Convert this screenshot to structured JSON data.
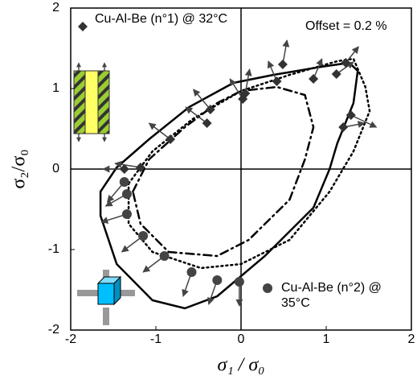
{
  "chart_data": {
    "type": "scatter",
    "x_label": "σ₁ / σ₀",
    "y_label": "σ₂/σ₀",
    "annotation": "Offset = 0.2 %",
    "xlim": [
      -2,
      2
    ],
    "ylim": [
      -2,
      2
    ],
    "xticks": [
      -2,
      -1,
      0,
      1,
      2
    ],
    "yticks": [
      -2,
      -1,
      0,
      1,
      2
    ],
    "series": [
      {
        "name": "Cu-Al-Be (n°1) @ 32°C",
        "marker": "diamond",
        "color": "#333333",
        "x": [
          0.49,
          1.23,
          1.12,
          0.85,
          0.42,
          0.05,
          0.02,
          -0.36,
          -0.4,
          -0.83,
          -1.18,
          -1.37,
          1.2,
          1.29
        ],
        "y": [
          1.3,
          1.32,
          1.18,
          1.12,
          1.09,
          0.94,
          0.87,
          0.74,
          0.57,
          0.37,
          0.02,
          0.0,
          0.52,
          0.67
        ],
        "dx": [
          0.05,
          0.15,
          0.2,
          0.1,
          -0.1,
          0.05,
          -0.15,
          -0.2,
          -0.25,
          -0.25,
          -0.3,
          -0.25,
          0.25,
          0.3
        ],
        "dy": [
          0.3,
          0.2,
          0.15,
          0.25,
          0.25,
          0.3,
          0.25,
          0.25,
          0.2,
          0.2,
          0.05,
          0,
          0.05,
          -0.15
        ]
      },
      {
        "name": "Cu-Al-Be (n°2) @ 35°C",
        "marker": "circle",
        "color": "#444444",
        "x": [
          -1.37,
          -1.34,
          -1.34,
          -1.15,
          -0.9,
          -0.58,
          -0.28,
          -0.02
        ],
        "y": [
          -0.16,
          -0.31,
          -0.56,
          -0.83,
          -1.08,
          -1.28,
          -1.38,
          -1.4
        ],
        "dx": [
          -0.2,
          -0.25,
          -0.3,
          -0.25,
          -0.25,
          -0.1,
          -0.1,
          0
        ],
        "dy": [
          -0.25,
          -0.15,
          -0.1,
          -0.2,
          -0.2,
          -0.3,
          -0.3,
          -0.3
        ]
      }
    ],
    "curves": [
      {
        "style": "solid",
        "x": [
          -1.65,
          -1.46,
          -1.08,
          -0.61,
          -0.09,
          0.38,
          0.94,
          1.27,
          1.37,
          1.32,
          1.13,
          1.04,
          0.85,
          0.28,
          -0.28,
          -0.66,
          -1.04,
          -1.46,
          -1.65
        ],
        "y": [
          -0.28,
          0.02,
          0.37,
          0.77,
          1.07,
          1.17,
          1.27,
          1.32,
          1.22,
          0.82,
          0.32,
          0,
          -0.48,
          -1.08,
          -1.58,
          -1.73,
          -1.63,
          -1.18,
          -0.58
        ]
      },
      {
        "style": "dotted",
        "x": [
          -1.32,
          -1.04,
          -0.57,
          0,
          0.57,
          1.13,
          1.32,
          1.46,
          1.51,
          1.32,
          1.04,
          0.57,
          0,
          -0.47,
          -1.04,
          -1.32
        ],
        "y": [
          -0.18,
          0.22,
          0.62,
          0.97,
          1.17,
          1.34,
          1.37,
          1.02,
          0.72,
          0.22,
          -0.28,
          -0.88,
          -1.18,
          -1.23,
          -1.03,
          -0.68
        ]
      },
      {
        "style": "dashdot",
        "x": [
          -1.27,
          -1.08,
          -0.66,
          -0.28,
          0,
          0.42,
          0.75,
          0.85,
          0.75,
          0.57,
          0.09,
          -0.28,
          -0.85,
          -1.18
        ],
        "y": [
          -0.28,
          0.12,
          0.52,
          0.82,
          0.97,
          1.02,
          0.92,
          0.52,
          0.12,
          -0.38,
          -0.88,
          -1.08,
          -1.03,
          -0.68
        ]
      }
    ]
  }
}
